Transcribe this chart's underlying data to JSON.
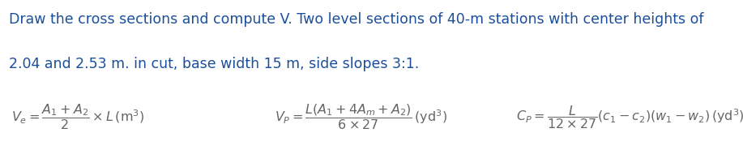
{
  "title_line1": "Draw the cross sections and compute V. Two level sections of 40-m stations with center heights of",
  "title_line2": "2.04 and 2.53 m. in cut, base width 15 m, side slopes 3:1.",
  "text_color": "#1b4f9c",
  "formula_color": "#666666",
  "bg_color": "#ffffff",
  "title_fontsize": 12.5,
  "formula_fontsize": 11.5,
  "fig_width": 9.17,
  "fig_height": 1.85,
  "dpi": 100
}
